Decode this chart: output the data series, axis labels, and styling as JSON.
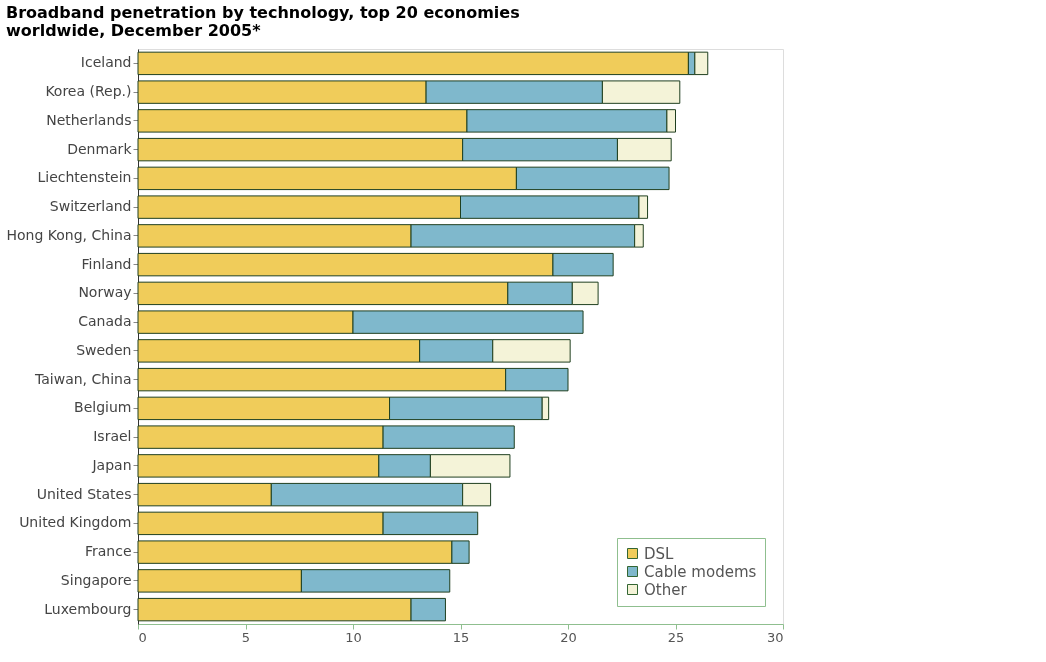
{
  "chart_data": {
    "type": "bar",
    "orientation": "horizontal",
    "stacked": true,
    "title": [
      "Broadband penetration by technology, top 20 economies",
      "worldwide, December 2005*"
    ],
    "categories": [
      "Iceland",
      "Korea (Rep.)",
      "Netherlands",
      "Denmark",
      "Liechtenstein",
      "Switzerland",
      "Hong Kong, China",
      "Finland",
      "Norway",
      "Canada",
      "Sweden",
      "Taiwan, China",
      "Belgium",
      "Israel",
      "Japan",
      "United States",
      "United Kingdom",
      "France",
      "Singapore",
      "Luxembourg"
    ],
    "series": [
      {
        "name": "DSL",
        "color": "#f0cc5a",
        "values": [
          25.6,
          13.4,
          15.3,
          15.1,
          17.6,
          15.0,
          12.7,
          19.3,
          17.2,
          10.0,
          13.1,
          17.1,
          11.7,
          11.4,
          11.2,
          6.2,
          11.4,
          14.6,
          7.6,
          12.7
        ]
      },
      {
        "name": "Cable modems",
        "color": "#7fb8cc",
        "values": [
          0.3,
          8.2,
          9.3,
          7.2,
          7.1,
          8.3,
          10.4,
          2.8,
          3.0,
          10.7,
          3.4,
          2.9,
          7.1,
          6.1,
          2.4,
          8.9,
          4.4,
          0.8,
          6.9,
          1.6
        ]
      },
      {
        "name": "Other",
        "color": "#f4f3d8",
        "values": [
          0.6,
          3.6,
          0.4,
          2.5,
          null,
          0.4,
          0.4,
          null,
          1.2,
          null,
          3.6,
          null,
          0.3,
          null,
          3.7,
          1.3,
          null,
          null,
          null,
          null
        ]
      }
    ],
    "xlim": [
      0,
      30
    ],
    "xticks": [
      0,
      5,
      10,
      15,
      20,
      25,
      30
    ],
    "grid": false,
    "legend": "bottom right"
  }
}
